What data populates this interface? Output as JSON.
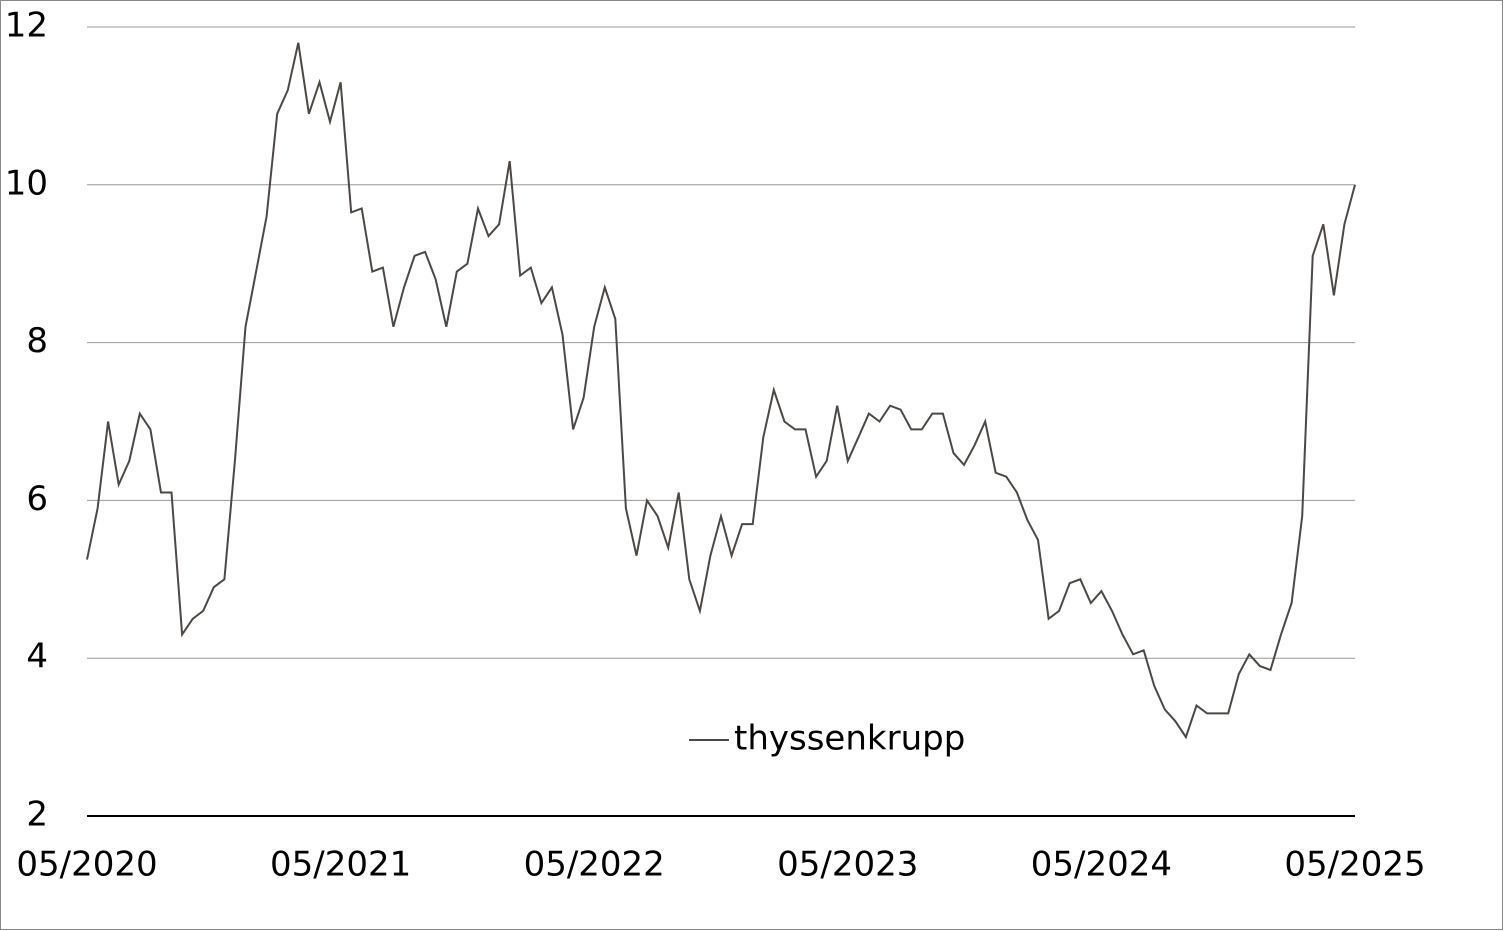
{
  "chart_data": {
    "type": "line",
    "categories": [
      "05/2020",
      null,
      null,
      null,
      null,
      null,
      null,
      null,
      null,
      null,
      null,
      null,
      null,
      null,
      null,
      null,
      null,
      null,
      null,
      null,
      null,
      null,
      null,
      null,
      "05/2021",
      null,
      null,
      null,
      null,
      null,
      null,
      null,
      null,
      null,
      null,
      null,
      null,
      null,
      null,
      null,
      null,
      null,
      null,
      null,
      null,
      null,
      null,
      null,
      "05/2022",
      null,
      null,
      null,
      null,
      null,
      null,
      null,
      null,
      null,
      null,
      null,
      null,
      null,
      null,
      null,
      null,
      null,
      null,
      null,
      null,
      null,
      null,
      null,
      "05/2023",
      null,
      null,
      null,
      null,
      null,
      null,
      null,
      null,
      null,
      null,
      null,
      null,
      null,
      null,
      null,
      null,
      null,
      null,
      null,
      null,
      null,
      null,
      null,
      "05/2024",
      null,
      null,
      null,
      null,
      null,
      null,
      null,
      null,
      null,
      null,
      null,
      null,
      null,
      null,
      null,
      null,
      null,
      null,
      null,
      null,
      null,
      null,
      null,
      "05/2025"
    ],
    "series": [
      {
        "name": "thyssenkrupp",
        "color": "#4d4843",
        "values": [
          5.25,
          5.9,
          7.0,
          6.2,
          6.5,
          7.1,
          6.9,
          6.1,
          6.1,
          4.3,
          4.5,
          4.6,
          4.9,
          5.0,
          6.5,
          8.2,
          8.9,
          9.6,
          10.9,
          11.2,
          11.8,
          10.9,
          11.3,
          10.8,
          11.3,
          9.65,
          9.7,
          8.9,
          8.95,
          8.2,
          8.7,
          9.1,
          9.15,
          8.8,
          8.2,
          8.9,
          9.0,
          9.7,
          9.35,
          9.5,
          10.3,
          8.85,
          8.95,
          8.5,
          8.7,
          8.1,
          6.9,
          7.3,
          8.2,
          8.7,
          8.3,
          5.9,
          5.3,
          6.0,
          5.8,
          5.4,
          6.1,
          5.0,
          4.6,
          5.3,
          5.8,
          5.3,
          5.7,
          5.7,
          6.8,
          7.4,
          7.0,
          6.9,
          6.9,
          6.3,
          6.5,
          7.2,
          6.5,
          6.8,
          7.1,
          7.0,
          7.2,
          7.15,
          6.9,
          6.9,
          7.1,
          7.1,
          6.6,
          6.45,
          6.7,
          7.0,
          6.35,
          6.3,
          6.1,
          5.75,
          5.5,
          4.5,
          4.6,
          4.95,
          5.0,
          4.7,
          4.85,
          4.6,
          4.3,
          4.05,
          4.1,
          3.65,
          3.35,
          3.2,
          3.0,
          3.4,
          3.3,
          3.3,
          3.3,
          3.8,
          4.05,
          3.9,
          3.85,
          4.3,
          4.7,
          5.8,
          9.1,
          9.5,
          8.6,
          9.5,
          10.0
        ]
      }
    ],
    "ylim": [
      2,
      12
    ],
    "yticks": [
      2,
      4,
      6,
      8,
      10,
      12
    ],
    "grid": true
  }
}
